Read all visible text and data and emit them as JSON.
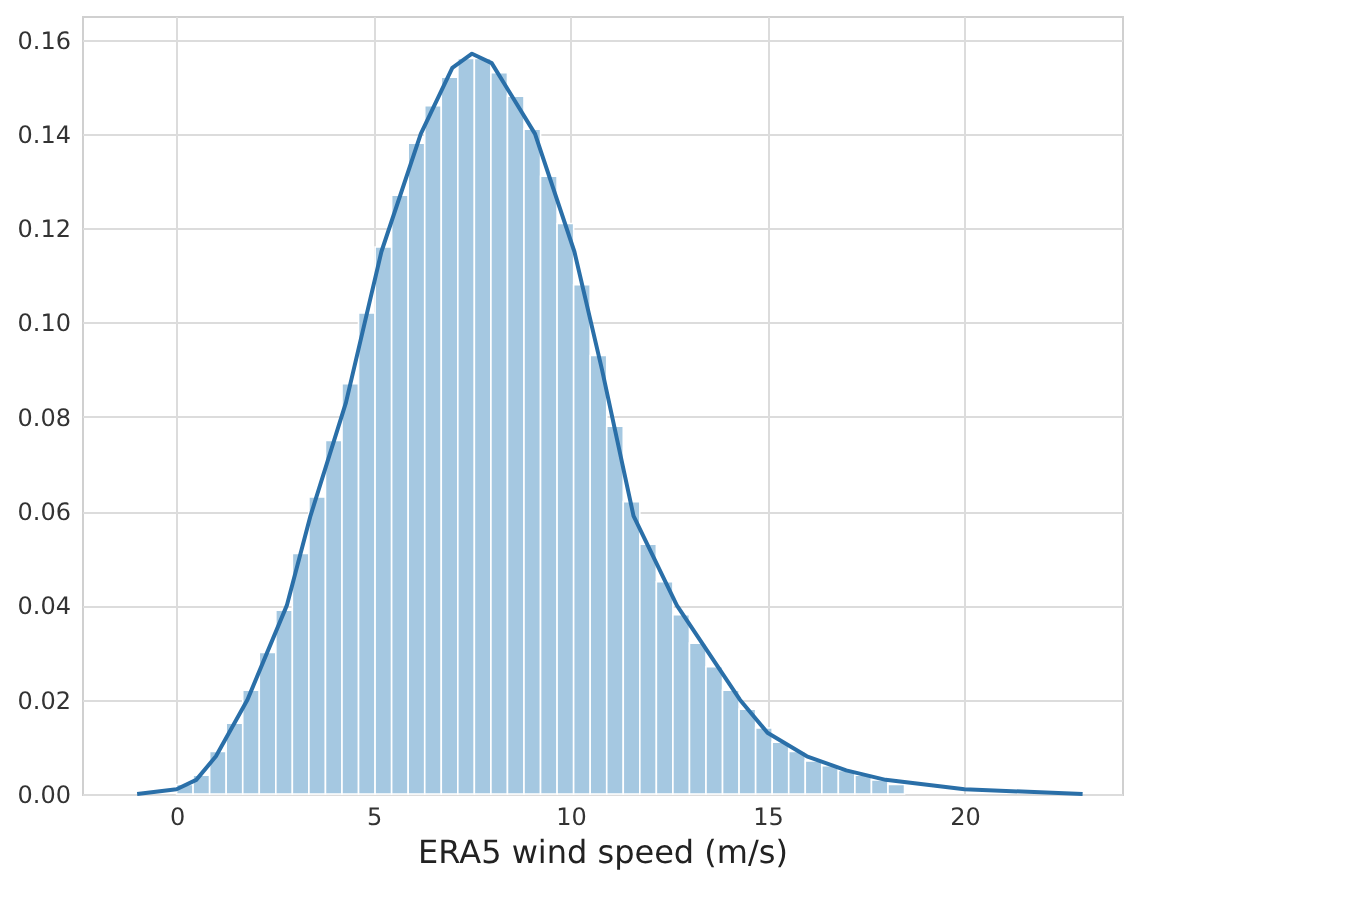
{
  "chart_data": {
    "type": "histogram",
    "xlabel": "ERA5 wind speed (m/s)",
    "color": "#a5c8e1",
    "bins": [
      0,
      0.42,
      0.84,
      1.26,
      1.68,
      2.1,
      2.52,
      2.94,
      3.36,
      3.78,
      4.2,
      4.62,
      5.04,
      5.46,
      5.88,
      6.3,
      6.72,
      7.14,
      7.56,
      7.98,
      8.4,
      8.82,
      9.24,
      9.66,
      10.08,
      10.5,
      10.92,
      11.34,
      11.76,
      12.18,
      12.6,
      13.02,
      13.44,
      13.86,
      14.28,
      14.7,
      15.12,
      15.54,
      15.96,
      16.38,
      16.8,
      17.22,
      17.64,
      18.06,
      18.48,
      18.9,
      19.32,
      19.74,
      20.16,
      20.58,
      21
    ],
    "values": [
      0.002,
      0.004,
      0.009,
      0.015,
      0.022,
      0.03,
      0.039,
      0.051,
      0.063,
      0.075,
      0.087,
      0.102,
      0.116,
      0.127,
      0.138,
      0.146,
      0.152,
      0.156,
      0.156,
      0.153,
      0.148,
      0.141,
      0.131,
      0.121,
      0.108,
      0.093,
      0.078,
      0.062,
      0.053,
      0.045,
      0.038,
      0.032,
      0.027,
      0.022,
      0.018,
      0.014,
      0.011,
      0.009,
      0.007,
      0.006,
      0.005,
      0.004,
      0.003,
      0.002,
      null,
      null,
      null,
      null,
      null,
      null
    ],
    "series": [
      {
        "type": "line",
        "color": "#2a6fa8",
        "x": [
          -1,
          0,
          0.5,
          1,
          1.8,
          2.8,
          3.4,
          4.3,
          5.2,
          6.2,
          7,
          7.5,
          8,
          9.1,
          10.1,
          10.8,
          11.6,
          12.7,
          14.3,
          15,
          16,
          17,
          18,
          20,
          23
        ],
        "values": [
          0,
          0.001,
          0.003,
          0.008,
          0.02,
          0.04,
          0.059,
          0.083,
          0.115,
          0.14,
          0.154,
          0.157,
          0.155,
          0.14,
          0.115,
          0.09,
          0.059,
          0.04,
          0.02,
          0.013,
          0.008,
          0.005,
          0.003,
          0.001,
          0
        ]
      }
    ],
    "xlim": [
      -2.4,
      24
    ],
    "xticks": [
      0,
      5,
      10,
      15,
      20
    ],
    "ylim": [
      0,
      0.165
    ],
    "yticks": [
      {
        "value": 0,
        "label": "0.00"
      },
      {
        "value": 0.02,
        "label": "0.02"
      },
      {
        "value": 0.04,
        "label": "0.04"
      },
      {
        "value": 0.06,
        "label": "0.06"
      },
      {
        "value": 0.08,
        "label": "0.08"
      },
      {
        "value": 0.1,
        "label": "0.10"
      },
      {
        "value": 0.12,
        "label": "0.12"
      },
      {
        "value": 0.14,
        "label": "0.14"
      },
      {
        "value": 0.16,
        "label": "0.16"
      }
    ],
    "grid": true
  }
}
